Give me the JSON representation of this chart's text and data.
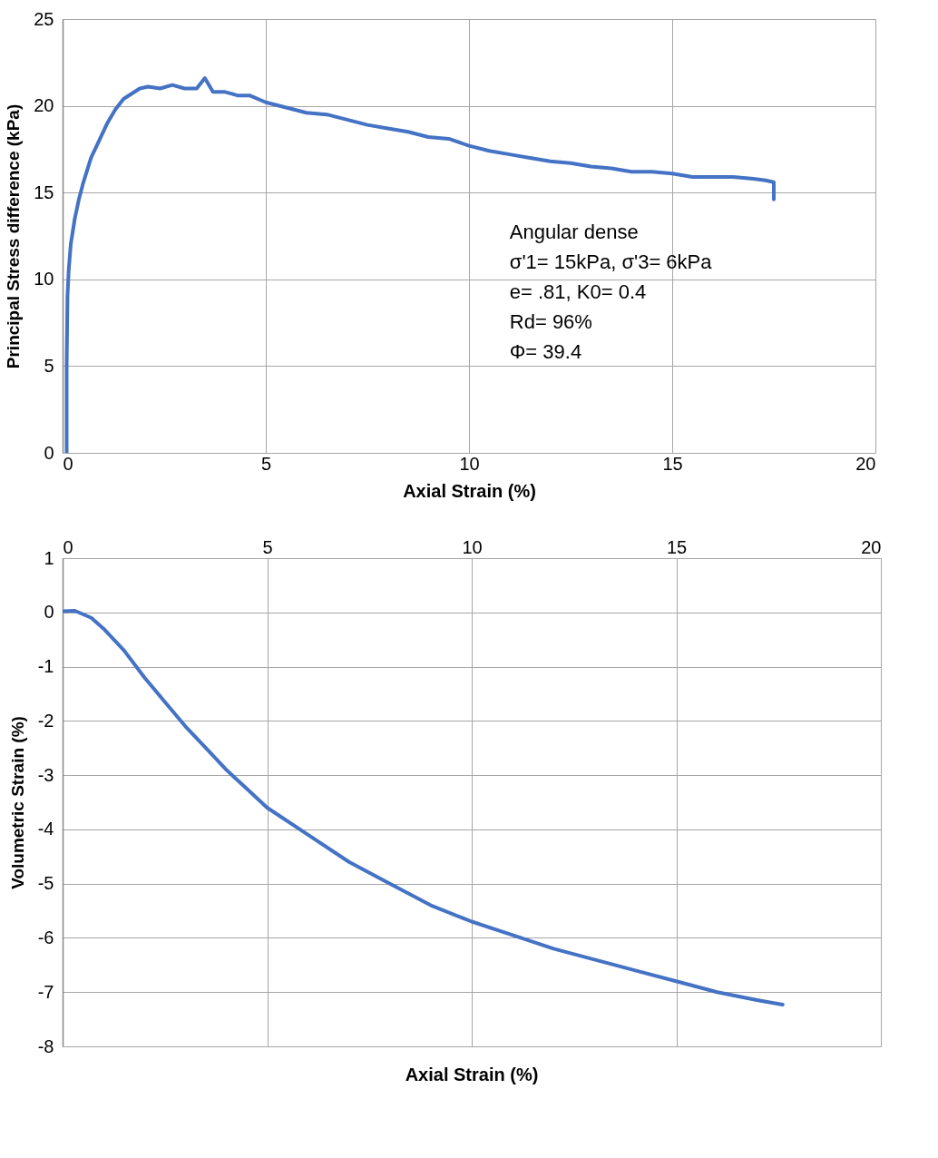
{
  "chart_data": [
    {
      "type": "line",
      "xlabel": "Axial Strain (%)",
      "ylabel": "Principal Stress difference (kPa)",
      "xlim": [
        0,
        20
      ],
      "xticks": [
        0,
        5,
        10,
        15,
        20
      ],
      "ylim": [
        0,
        25
      ],
      "yticks": [
        0,
        5,
        10,
        15,
        20,
        25
      ],
      "grid": true,
      "legend": false,
      "marker": "none",
      "line_style": "solid",
      "annotations": [
        "Angular dense",
        "σ'1= 15kPa, σ'3= 6kPa",
        "e= .81, K0= 0.4",
        "Rd= 96%",
        "Φ= 39.4"
      ],
      "series": [
        {
          "color": "#4472c4",
          "x": [
            0.1,
            0.1,
            0.12,
            0.15,
            0.2,
            0.3,
            0.4,
            0.5,
            0.7,
            0.9,
            1.1,
            1.3,
            1.5,
            1.7,
            1.9,
            2.1,
            2.4,
            2.7,
            3.0,
            3.3,
            3.5,
            3.7,
            4.0,
            4.3,
            4.6,
            5.0,
            5.5,
            6.0,
            6.5,
            7.0,
            7.5,
            8.0,
            8.5,
            9.0,
            9.5,
            10.0,
            10.5,
            11.0,
            11.5,
            12.0,
            12.5,
            13.0,
            13.5,
            14.0,
            14.5,
            15.0,
            15.5,
            16.0,
            16.5,
            17.0,
            17.3,
            17.5,
            17.5
          ],
          "values": [
            0,
            5,
            9,
            10.5,
            12,
            13.5,
            14.6,
            15.5,
            17,
            18,
            19,
            19.8,
            20.4,
            20.7,
            21,
            21.1,
            21,
            21.2,
            21,
            21,
            21.6,
            20.8,
            20.8,
            20.6,
            20.6,
            20.2,
            19.9,
            19.6,
            19.5,
            19.2,
            18.9,
            18.7,
            18.5,
            18.2,
            18.1,
            17.7,
            17.4,
            17.2,
            17,
            16.8,
            16.7,
            16.5,
            16.4,
            16.2,
            16.2,
            16.1,
            15.9,
            15.9,
            15.9,
            15.8,
            15.7,
            15.6,
            14.6
          ]
        }
      ]
    },
    {
      "type": "line",
      "xlabel": "Axial Strain (%)",
      "ylabel": "Volumetric Strain (%)",
      "xlim": [
        0,
        20
      ],
      "xticks": [
        0,
        5,
        10,
        15,
        20
      ],
      "ylim": [
        -8,
        1
      ],
      "yticks": [
        -8,
        -7,
        -6,
        -5,
        -4,
        -3,
        -2,
        -1,
        0,
        1
      ],
      "grid": true,
      "legend": false,
      "marker": "none",
      "line_style": "solid",
      "series": [
        {
          "color": "#4472c4",
          "x": [
            0,
            0.3,
            0.7,
            1,
            1.5,
            2,
            2.5,
            3,
            3.5,
            4,
            4.5,
            5,
            6,
            7,
            8,
            9,
            10,
            11,
            12,
            13,
            14,
            15,
            16,
            17,
            17.6
          ],
          "values": [
            0.02,
            0.03,
            -0.1,
            -0.3,
            -0.7,
            -1.2,
            -1.65,
            -2.1,
            -2.5,
            -2.9,
            -3.25,
            -3.6,
            -4.1,
            -4.6,
            -5.0,
            -5.4,
            -5.7,
            -5.95,
            -6.2,
            -6.4,
            -6.6,
            -6.8,
            -7.0,
            -7.15,
            -7.23
          ]
        }
      ]
    }
  ]
}
